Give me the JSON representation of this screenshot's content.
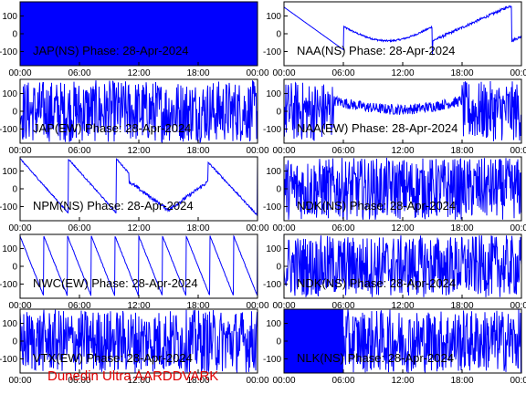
{
  "footer": "Dunedin Ultra AARDDVARK",
  "colors": {
    "trace": "#0000ff",
    "axis": "#000000",
    "footer": "#e00000"
  },
  "chart_data": [
    {
      "type": "line",
      "title": "JAP(NS) Phase: 28-Apr-2024",
      "pattern": "solid",
      "x_ticks": [
        "00:00",
        "06:00",
        "12:00",
        "18:00",
        "00:00"
      ],
      "y_ticks": [
        "100",
        "0",
        "-100"
      ],
      "ylim": [
        -180,
        180
      ],
      "xlim": [
        0,
        24
      ]
    },
    {
      "type": "line",
      "title": "NAA(NS) Phase: 28-Apr-2024",
      "pattern": "drift",
      "x_ticks": [
        "00:00",
        "06:00",
        "12:00",
        "18:00",
        "00:00"
      ],
      "y_ticks": [
        "100",
        "0",
        "-100"
      ],
      "ylim": [
        -180,
        180
      ],
      "xlim": [
        0,
        24
      ]
    },
    {
      "type": "line",
      "title": "JAP(EW) Phase: 28-Apr-2024",
      "pattern": "noisy",
      "x_ticks": [
        "00:00",
        "06:00",
        "12:00",
        "18:00",
        "00:00"
      ],
      "y_ticks": [
        "100",
        "0",
        "-100"
      ],
      "ylim": [
        -180,
        180
      ],
      "xlim": [
        0,
        24
      ]
    },
    {
      "type": "line",
      "title": "NAA(EW) Phase: 28-Apr-2024",
      "pattern": "drift-noisy",
      "x_ticks": [
        "00:00",
        "06:00",
        "12:00",
        "18:00",
        "00:00"
      ],
      "y_ticks": [
        "100",
        "0",
        "-100"
      ],
      "ylim": [
        -180,
        180
      ],
      "xlim": [
        0,
        24
      ]
    },
    {
      "type": "line",
      "title": "NPM(NS) Phase: 28-Apr-2024",
      "pattern": "slow-wrap",
      "x_ticks": [
        "00:00",
        "06:00",
        "12:00",
        "18:00",
        "00:00"
      ],
      "y_ticks": [
        "100",
        "0",
        "-100"
      ],
      "ylim": [
        -180,
        180
      ],
      "xlim": [
        0,
        24
      ]
    },
    {
      "type": "line",
      "title": "NDK(NS) Phase: 28-Apr-2024",
      "pattern": "noisy",
      "x_ticks": [
        "00:00",
        "06:00",
        "12:00",
        "18:00",
        "00:00"
      ],
      "y_ticks": [
        "100",
        "0",
        "-100"
      ],
      "ylim": [
        -180,
        180
      ],
      "xlim": [
        0,
        24
      ]
    },
    {
      "type": "line",
      "title": "NWC(EW) Phase: 28-Apr-2024",
      "pattern": "sawtooth",
      "x_ticks": [
        "00:00",
        "06:00",
        "12:00",
        "18:00",
        "00:00"
      ],
      "y_ticks": [
        "100",
        "0",
        "-100"
      ],
      "ylim": [
        -180,
        180
      ],
      "xlim": [
        0,
        24
      ]
    },
    {
      "type": "line",
      "title": "NDK(NS) Phase: 28-Apr-2024",
      "pattern": "noisy",
      "x_ticks": [
        "00:00",
        "06:00",
        "12:00",
        "18:00",
        "00:00"
      ],
      "y_ticks": [
        "100",
        "0",
        "-100"
      ],
      "ylim": [
        -180,
        180
      ],
      "xlim": [
        0,
        24
      ]
    },
    {
      "type": "line",
      "title": "VTX(EW) Phase: 28-Apr-2024",
      "pattern": "dense",
      "x_ticks": [
        "00:00",
        "06:00",
        "12:00",
        "18:00",
        "00:00"
      ],
      "y_ticks": [
        "100",
        "0",
        "-100"
      ],
      "ylim": [
        -180,
        180
      ],
      "xlim": [
        0,
        24
      ]
    },
    {
      "type": "line",
      "title": "NLK(NS) Phase: 28-Apr-2024",
      "pattern": "solid-then-dense",
      "x_ticks": [
        "00:00",
        "06:00",
        "12:00",
        "18:00",
        "00:00"
      ],
      "y_ticks": [
        "100",
        "0",
        "-100"
      ],
      "ylim": [
        -180,
        180
      ],
      "xlim": [
        0,
        24
      ]
    }
  ]
}
